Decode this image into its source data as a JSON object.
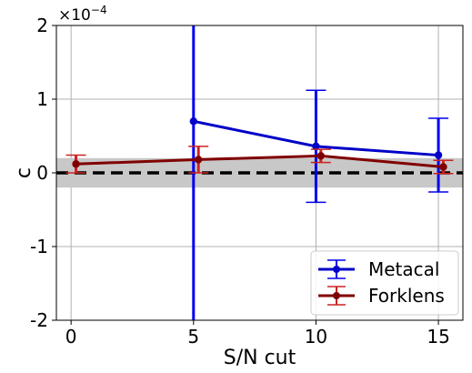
{
  "chart_data": {
    "type": "line",
    "xlabel": "S/N cut",
    "ylabel": "c",
    "y_offset_label": "×10",
    "y_offset_exponent": "−4",
    "xlim": [
      -0.6,
      16.0
    ],
    "ylim": [
      -2,
      2
    ],
    "x_ticks": [
      0,
      5,
      10,
      15
    ],
    "x_tick_labels": [
      "0",
      "5",
      "10",
      "15"
    ],
    "y_ticks": [
      -2,
      -1,
      0,
      1,
      2
    ],
    "y_tick_labels": [
      "-2",
      "-1",
      "0",
      "1",
      "2"
    ],
    "grid": true,
    "legend_position": "lower-right",
    "reference_line": {
      "y": 0,
      "style": "dashed",
      "color": "#000000"
    },
    "shaded_band": {
      "y_min": -0.2,
      "y_max": 0.2,
      "color": "#c8c8c8"
    },
    "series": [
      {
        "name": "Metacal",
        "color": "#0000c8",
        "errorbar_color": "#0000ee",
        "x": [
          5,
          10,
          15
        ],
        "y": [
          0.7,
          0.36,
          0.24
        ],
        "yerr": [
          3.6,
          0.76,
          0.5
        ]
      },
      {
        "name": "Forklens",
        "color": "#800000",
        "errorbar_color": "#cc2222",
        "x": [
          0.2,
          5.2,
          10.2,
          15.2
        ],
        "y": [
          0.12,
          0.18,
          0.23,
          0.08
        ],
        "yerr": [
          0.12,
          0.18,
          0.09,
          0.09
        ]
      }
    ]
  }
}
